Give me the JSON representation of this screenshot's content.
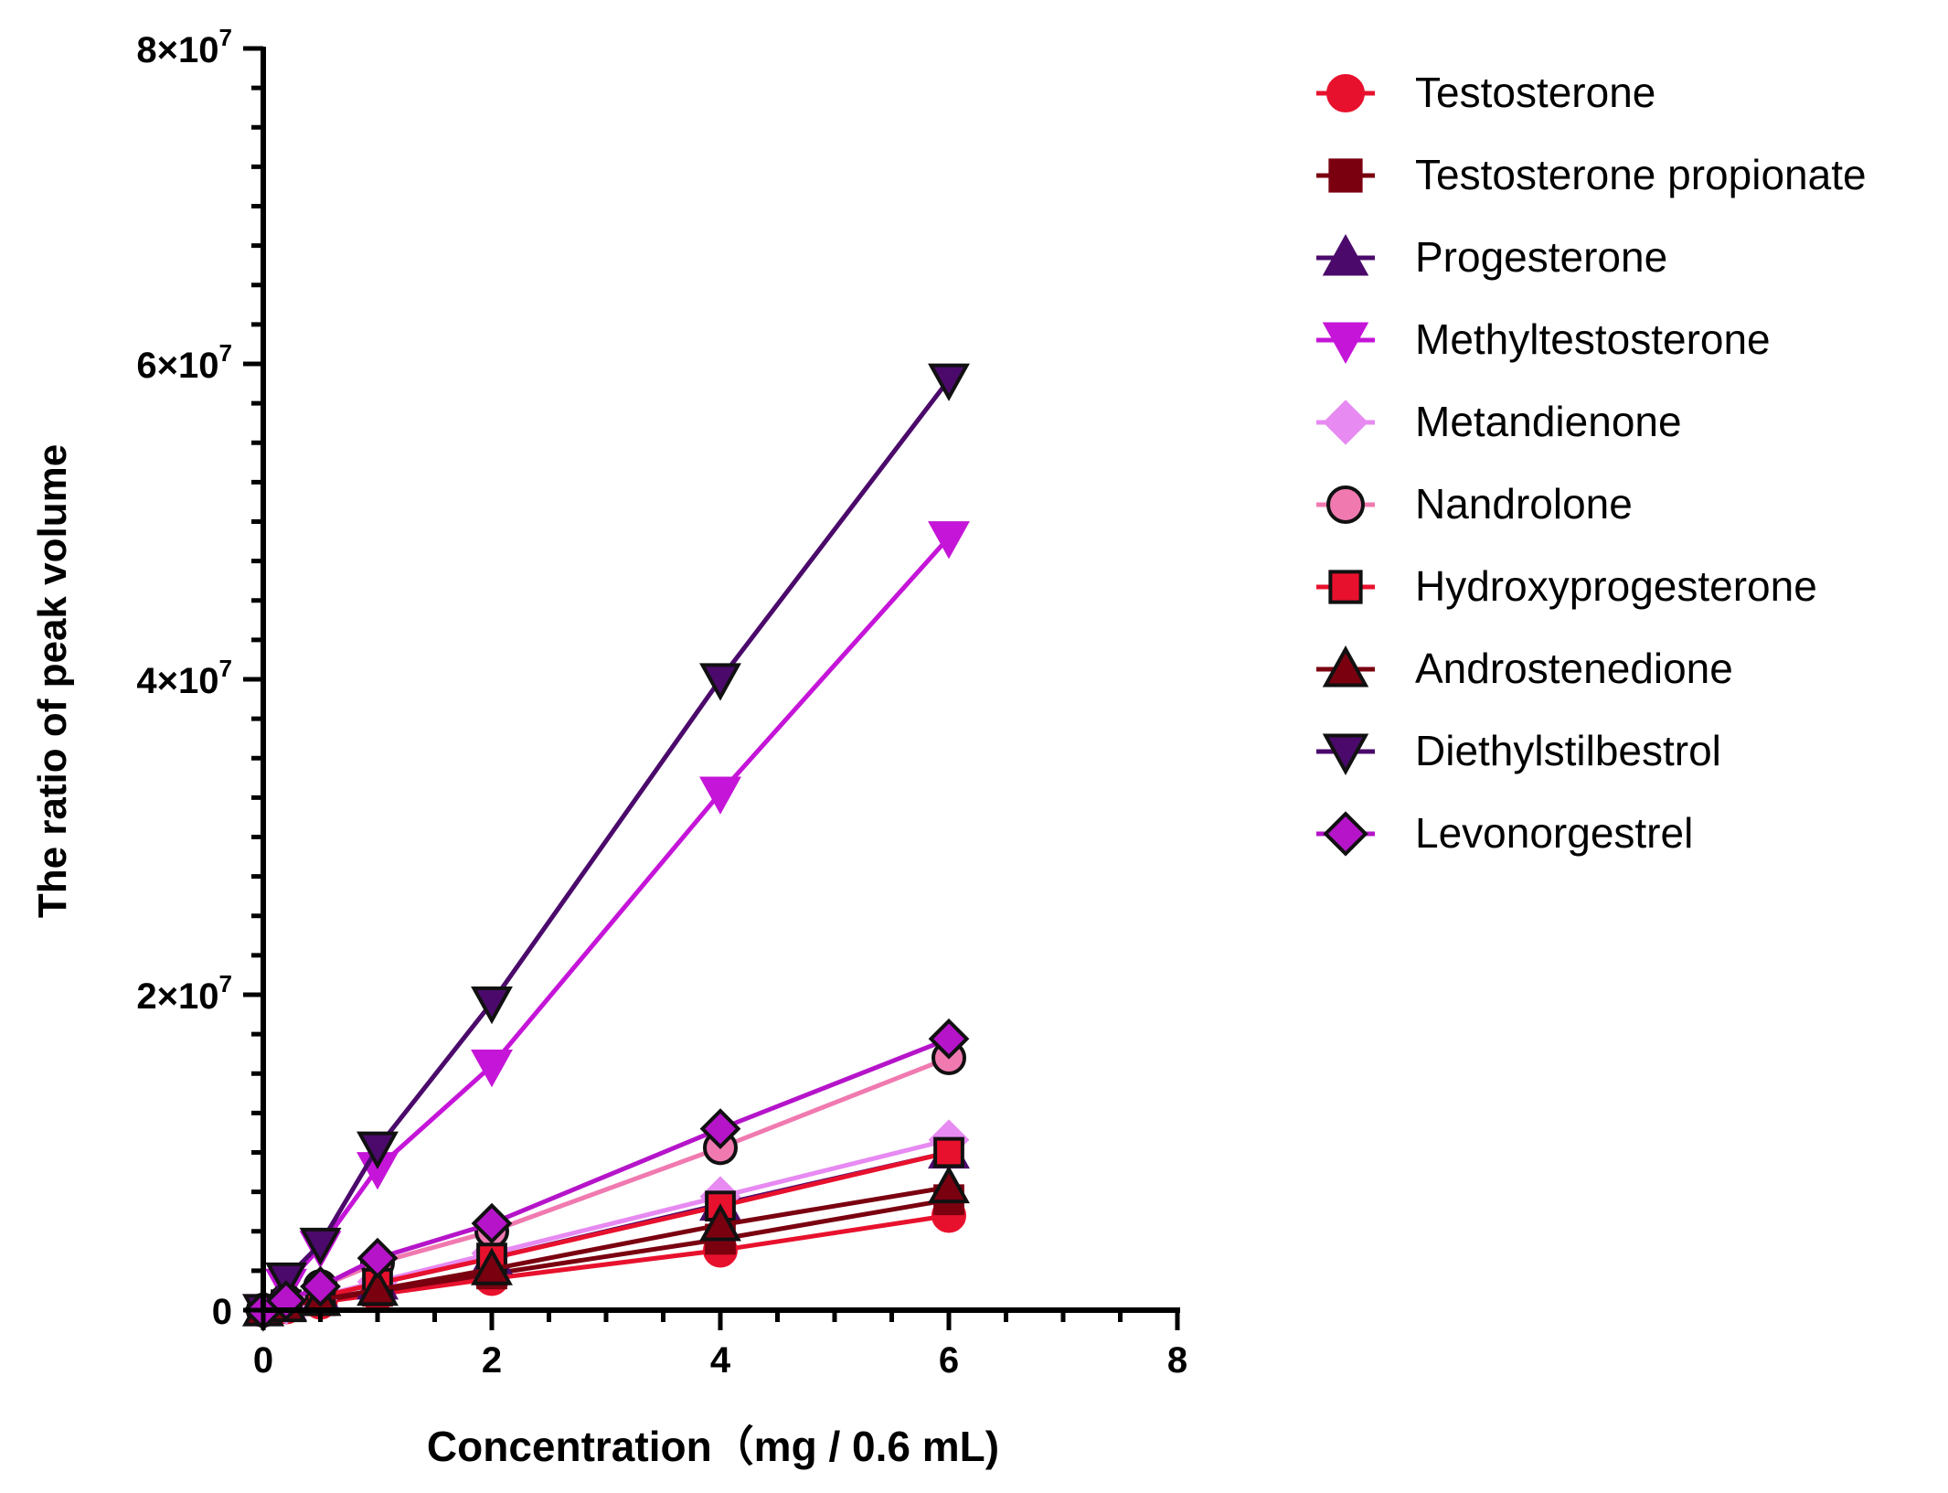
{
  "chart_data": {
    "type": "line",
    "xlabel": "Concentration（mg / 0.6 mL)",
    "ylabel": "The ratio of peak volume",
    "xlim": [
      0,
      8
    ],
    "ylim": [
      0,
      80000000
    ],
    "x_ticks": [
      0,
      2,
      4,
      6,
      8
    ],
    "x_tick_labels": [
      "0",
      "2",
      "4",
      "6",
      "8"
    ],
    "y_ticks": [
      0,
      20000000,
      40000000,
      60000000,
      80000000
    ],
    "y_tick_labels": [
      {
        "base": "0",
        "exp": ""
      },
      {
        "base": "2×10",
        "exp": "7"
      },
      {
        "base": "4×10",
        "exp": "7"
      },
      {
        "base": "6×10",
        "exp": "7"
      },
      {
        "base": "8×10",
        "exp": "7"
      }
    ],
    "grid": false,
    "legend_position": "right",
    "x": [
      0,
      0.1,
      0.2,
      0.5,
      1,
      2,
      4,
      6
    ],
    "series": [
      {
        "name": "Testosterone",
        "color": "#e8112d",
        "marker": "circle",
        "line": "#e8112d",
        "stroke": "#e8112d",
        "values": [
          0,
          100000,
          200000,
          500000,
          1000000,
          2000000,
          3800000,
          6000000
        ]
      },
      {
        "name": "Testosterone propionate",
        "color": "#7a0010",
        "marker": "square",
        "line": "#7a0010",
        "stroke": "#7a0010",
        "values": [
          0,
          120000,
          240000,
          600000,
          1200000,
          2300000,
          4500000,
          7000000
        ]
      },
      {
        "name": "Progesterone",
        "color": "#4b0a6b",
        "marker": "triangle-up",
        "line": "#4b0a6b",
        "stroke": "#4b0a6b",
        "values": [
          0,
          170000,
          340000,
          850000,
          1700000,
          3300000,
          6700000,
          10000000
        ]
      },
      {
        "name": "Methyltestosterone",
        "color": "#c515d8",
        "marker": "triangle-down",
        "line": "#c515d8",
        "stroke": "#c515d8",
        "values": [
          0,
          800000,
          1600000,
          4000000,
          9000000,
          15500000,
          32800000,
          49000000
        ]
      },
      {
        "name": "Metandienone",
        "color": "#e78af2",
        "marker": "diamond",
        "line": "#e78af2",
        "stroke": "#e78af2",
        "values": [
          0,
          180000,
          360000,
          900000,
          1800000,
          3600000,
          7200000,
          10800000
        ]
      },
      {
        "name": "Nandrolone",
        "color": "#f07ab0",
        "marker": "circle",
        "line": "#f07ab0",
        "stroke": "#111111",
        "values": [
          0,
          300000,
          600000,
          1500000,
          3000000,
          5000000,
          10300000,
          16000000
        ]
      },
      {
        "name": "Hydroxyprogesterone",
        "color": "#e8112d",
        "marker": "square",
        "line": "#e8112d",
        "stroke": "#111111",
        "values": [
          0,
          170000,
          340000,
          850000,
          1700000,
          3300000,
          6600000,
          10000000
        ]
      },
      {
        "name": "Androstenedione",
        "color": "#7a0010",
        "marker": "triangle-up",
        "line": "#7a0010",
        "stroke": "#111111",
        "values": [
          0,
          130000,
          260000,
          650000,
          1300000,
          2600000,
          5400000,
          7800000
        ]
      },
      {
        "name": "Diethylstilbestrol",
        "color": "#4b0a6b",
        "marker": "triangle-down",
        "line": "#4b0a6b",
        "stroke": "#111111",
        "values": [
          0,
          1000000,
          2000000,
          4200000,
          10300000,
          19500000,
          40000000,
          59000000
        ]
      },
      {
        "name": "Levonorgestrel",
        "color": "#b514c9",
        "marker": "diamond",
        "line": "#b514c9",
        "stroke": "#111111",
        "values": [
          0,
          300000,
          600000,
          1500000,
          3300000,
          5500000,
          11500000,
          17200000
        ]
      }
    ]
  }
}
